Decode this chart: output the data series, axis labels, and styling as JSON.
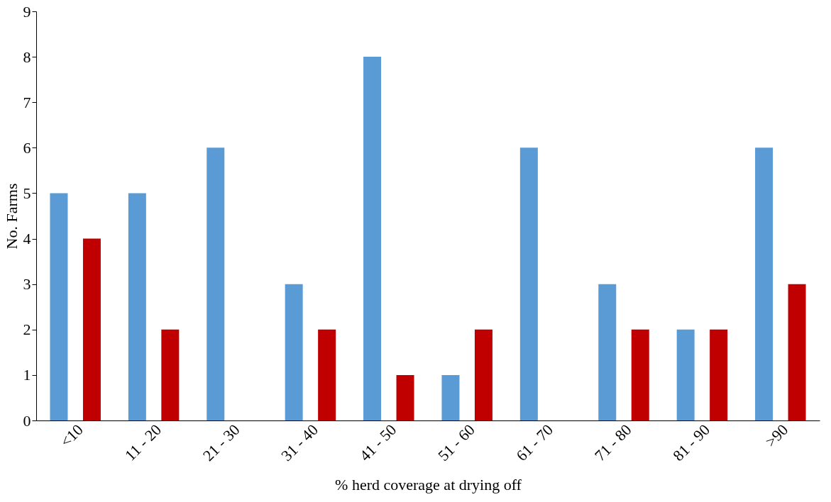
{
  "chart_data": {
    "type": "bar",
    "xlabel": "% herd coverage at drying off",
    "ylabel": "No. Farms",
    "categories": [
      "<10",
      "11 - 20",
      "21 - 30",
      "31 - 40",
      "41 - 50",
      "51 - 60",
      "61 - 70",
      "71 - 80",
      "81 - 90",
      ">90"
    ],
    "series": [
      {
        "color": "#5b9bd5",
        "values": [
          5,
          5,
          6,
          3,
          8,
          1,
          6,
          3,
          2,
          6
        ]
      },
      {
        "color": "#c00000",
        "values": [
          4,
          2,
          0,
          2,
          1,
          2,
          0,
          2,
          2,
          3
        ]
      }
    ],
    "ylim": [
      0,
      9
    ],
    "yticks": [
      0,
      1,
      2,
      3,
      4,
      5,
      6,
      7,
      8,
      9
    ],
    "grid": false
  }
}
